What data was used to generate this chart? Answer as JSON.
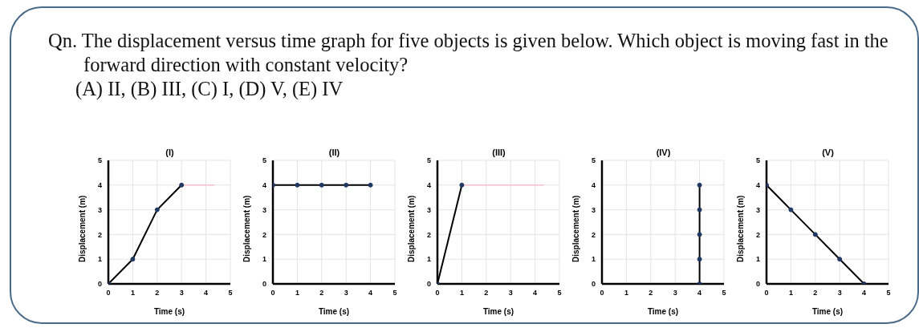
{
  "chart_data": [
    {
      "type": "other",
      "title": "Qn. The displacement versus time graph for five objects is given below. Which object is moving fast in the forward direction with constant velocity?",
      "annotations": [
        "(A) II, (B) III, (C) I, (D) V, (E) IV"
      ]
    },
    {
      "type": "line",
      "title": "(I)",
      "xlabel": "Time (s)",
      "ylabel": "Displacement (m)",
      "xlim": [
        0,
        5
      ],
      "ylim": [
        0,
        5
      ],
      "xticks": [
        0,
        1,
        2,
        3,
        4,
        5
      ],
      "yticks": [
        0,
        1,
        2,
        3,
        4,
        5
      ],
      "grid": true,
      "marker": "circle",
      "series": [
        {
          "color": "#000000",
          "x": [
            0,
            1,
            2,
            3
          ],
          "values": [
            0,
            1,
            3,
            4
          ]
        },
        {
          "color": "#f4c2cc",
          "x": [
            3,
            4.35
          ],
          "values": [
            4,
            4
          ],
          "marker": "none"
        }
      ]
    },
    {
      "type": "line",
      "title": "(II)",
      "xlabel": "Time (s)",
      "ylabel": "Displacement (m)",
      "xlim": [
        0,
        5
      ],
      "ylim": [
        0,
        5
      ],
      "xticks": [
        0,
        1,
        2,
        3,
        4,
        5
      ],
      "yticks": [
        0,
        1,
        2,
        3,
        4,
        5
      ],
      "grid": true,
      "marker": "circle",
      "series": [
        {
          "color": "#000000",
          "x": [
            0,
            1,
            2,
            3,
            4
          ],
          "values": [
            4,
            4,
            4,
            4,
            4
          ]
        }
      ]
    },
    {
      "type": "line",
      "title": "(III)",
      "xlabel": "Time (s)",
      "ylabel": "Displacement (m)",
      "xlim": [
        0,
        5
      ],
      "ylim": [
        0,
        5
      ],
      "xticks": [
        0,
        1,
        2,
        3,
        4,
        5
      ],
      "yticks": [
        0,
        1,
        2,
        3,
        4,
        5
      ],
      "grid": true,
      "marker": "circle",
      "series": [
        {
          "color": "#000000",
          "x": [
            0,
            1
          ],
          "values": [
            0,
            4
          ]
        },
        {
          "color": "#f4c2cc",
          "x": [
            1,
            4.35
          ],
          "values": [
            4,
            4
          ],
          "marker": "none"
        }
      ]
    },
    {
      "type": "line",
      "title": "(IV)",
      "xlabel": "Time (s)",
      "ylabel": "Displacement (m)",
      "xlim": [
        0,
        5
      ],
      "ylim": [
        0,
        5
      ],
      "xticks": [
        0,
        1,
        2,
        3,
        4,
        5
      ],
      "yticks": [
        0,
        1,
        2,
        3,
        4,
        5
      ],
      "grid": true,
      "marker": "circle",
      "series": [
        {
          "color": "#000000",
          "x": [
            4,
            4,
            4,
            4,
            4
          ],
          "values": [
            0,
            1,
            2,
            3,
            4
          ]
        }
      ]
    },
    {
      "type": "line",
      "title": "(V)",
      "xlabel": "Time (s)",
      "ylabel": "Displacement (m)",
      "xlim": [
        0,
        5
      ],
      "ylim": [
        0,
        5
      ],
      "xticks": [
        0,
        1,
        2,
        3,
        4,
        5
      ],
      "yticks": [
        0,
        1,
        2,
        3,
        4,
        5
      ],
      "grid": true,
      "marker": "circle",
      "series": [
        {
          "color": "#000000",
          "x": [
            0,
            1,
            2,
            3,
            4
          ],
          "values": [
            4,
            3,
            2,
            1,
            0
          ]
        }
      ]
    }
  ]
}
